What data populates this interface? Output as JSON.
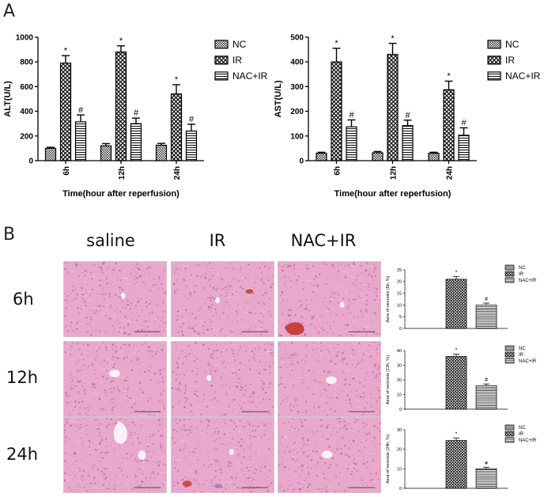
{
  "panel_labels": [
    "A",
    "B"
  ],
  "section_b": {
    "column_headers": [
      "saline",
      "IR",
      "NAC+IR"
    ],
    "row_headers": [
      "6h",
      "12h",
      "24h"
    ]
  },
  "colors": {
    "bar_stroke": "#000000",
    "tissue_base": "#e8a8cc",
    "tissue_dark": "#b8589a",
    "hemorrhage": "#c0392b",
    "vessel": "#fbf1f7"
  },
  "chart_data": [
    {
      "type": "bar",
      "categories": [
        "6h",
        "12h",
        "24h"
      ],
      "series": [
        {
          "name": "NC",
          "values": [
            100,
            120,
            125
          ],
          "errors": [
            8,
            18,
            15
          ],
          "marker": "",
          "pattern": "dots"
        },
        {
          "name": "IR",
          "values": [
            790,
            880,
            540
          ],
          "errors": [
            60,
            50,
            75
          ],
          "marker": "*",
          "pattern": "cross"
        },
        {
          "name": "NAC+IR",
          "values": [
            315,
            300,
            240
          ],
          "errors": [
            55,
            45,
            55
          ],
          "marker": "#",
          "pattern": "hlines"
        }
      ],
      "xlabel": "Time(hour after reperfusion)",
      "ylabel": "ALT(U/L)",
      "ylim": [
        0,
        1000
      ],
      "yticks": [
        0,
        200,
        400,
        600,
        800,
        1000
      ],
      "legend": "top-right"
    },
    {
      "type": "bar",
      "categories": [
        "6h",
        "12h",
        "24h"
      ],
      "series": [
        {
          "name": "NC",
          "values": [
            30,
            32,
            30
          ],
          "errors": [
            4,
            5,
            4
          ],
          "marker": "",
          "pattern": "dots"
        },
        {
          "name": "IR",
          "values": [
            400,
            430,
            287
          ],
          "errors": [
            55,
            45,
            35
          ],
          "marker": "*",
          "pattern": "cross"
        },
        {
          "name": "NAC+IR",
          "values": [
            137,
            142,
            103
          ],
          "errors": [
            28,
            22,
            30
          ],
          "marker": "#",
          "pattern": "hlines"
        }
      ],
      "xlabel": "Time(hour after reperfusion)",
      "ylabel": "AST(U/L)",
      "ylim": [
        0,
        500
      ],
      "yticks": [
        0,
        100,
        200,
        300,
        400,
        500
      ],
      "legend": "top-right"
    },
    {
      "type": "bar",
      "categories": [
        ""
      ],
      "series": [
        {
          "name": "NC",
          "values": [
            0
          ],
          "errors": [
            0
          ],
          "marker": "",
          "pattern": "dots"
        },
        {
          "name": "IR",
          "values": [
            21
          ],
          "errors": [
            1.2
          ],
          "marker": "*",
          "pattern": "cross"
        },
        {
          "name": "NAC+IR",
          "values": [
            10
          ],
          "errors": [
            0.8
          ],
          "marker": "#",
          "pattern": "hlines"
        }
      ],
      "xlabel": "",
      "ylabel": "Aera of necrosis (6h, %)",
      "ylim": [
        0,
        25
      ],
      "yticks": [
        0,
        5,
        10,
        15,
        20,
        25
      ],
      "legend": "top-right"
    },
    {
      "type": "bar",
      "categories": [
        ""
      ],
      "series": [
        {
          "name": "NC",
          "values": [
            0
          ],
          "errors": [
            0
          ],
          "marker": "",
          "pattern": "dots"
        },
        {
          "name": "IR",
          "values": [
            36
          ],
          "errors": [
            1.5
          ],
          "marker": "*",
          "pattern": "cross"
        },
        {
          "name": "NAC+IR",
          "values": [
            16
          ],
          "errors": [
            1.2
          ],
          "marker": "#",
          "pattern": "hlines"
        }
      ],
      "xlabel": "",
      "ylabel": "Aera of necrosis (12h, %)",
      "ylim": [
        0,
        40
      ],
      "yticks": [
        0,
        10,
        20,
        30,
        40
      ],
      "legend": "top-right"
    },
    {
      "type": "bar",
      "categories": [
        ""
      ],
      "series": [
        {
          "name": "NC",
          "values": [
            0
          ],
          "errors": [
            0
          ],
          "marker": "",
          "pattern": "dots"
        },
        {
          "name": "IR",
          "values": [
            24.5
          ],
          "errors": [
            1.2
          ],
          "marker": "*",
          "pattern": "cross"
        },
        {
          "name": "NAC+IR",
          "values": [
            10
          ],
          "errors": [
            0.8
          ],
          "marker": "#",
          "pattern": "hlines"
        }
      ],
      "xlabel": "",
      "ylabel": "Aera of necrosis (24h, %)",
      "ylim": [
        0,
        30
      ],
      "yticks": [
        0,
        10,
        20,
        30
      ],
      "legend": "top-right"
    }
  ]
}
